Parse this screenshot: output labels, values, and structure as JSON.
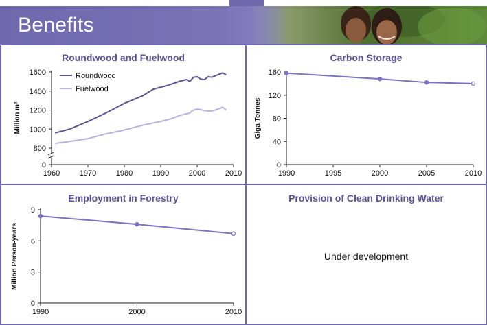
{
  "header": {
    "title": "Benefits"
  },
  "photo": {
    "icon": "children-photo"
  },
  "colors": {
    "accent": "#6f68ad",
    "roundwood": "#5b548f",
    "fuelwood": "#b7b2da",
    "line": "#7b72c0"
  },
  "chart_data": [
    {
      "type": "line",
      "title": "Roundwood and Fuelwood",
      "ylabel": "Million m³",
      "xlabel": "",
      "ylim": [
        0,
        1600
      ],
      "axis_break": true,
      "yticks": [
        0,
        800,
        1000,
        1200,
        1400,
        1600
      ],
      "xticks": [
        1960,
        1970,
        1980,
        1990,
        2000,
        2010
      ],
      "legend": "top-left",
      "series": [
        {
          "name": "Roundwood",
          "x": [
            1961,
            1965,
            1970,
            1975,
            1980,
            1985,
            1988,
            1990,
            1992,
            1995,
            1997,
            1998,
            1999,
            2000,
            2001,
            2002,
            2003,
            2004,
            2005,
            2006,
            2007,
            2008
          ],
          "y": [
            960,
            1000,
            1080,
            1170,
            1270,
            1350,
            1420,
            1440,
            1460,
            1500,
            1520,
            1500,
            1545,
            1550,
            1525,
            1520,
            1550,
            1545,
            1560,
            1575,
            1590,
            1570
          ]
        },
        {
          "name": "Fuelwood",
          "x": [
            1961,
            1965,
            1970,
            1975,
            1980,
            1985,
            1990,
            1993,
            1995,
            1997,
            1998,
            1999,
            2000,
            2001,
            2002,
            2003,
            2004,
            2005,
            2006,
            2007,
            2008
          ],
          "y": [
            850,
            870,
            900,
            950,
            990,
            1040,
            1080,
            1110,
            1140,
            1160,
            1170,
            1200,
            1210,
            1205,
            1195,
            1190,
            1190,
            1200,
            1215,
            1230,
            1200
          ]
        }
      ]
    },
    {
      "type": "line",
      "title": "Carbon Storage",
      "ylabel": "Giga Tonnes",
      "xlabel": "",
      "ylim": [
        0,
        160
      ],
      "yticks": [
        0,
        40,
        80,
        120,
        160
      ],
      "xticks": [
        1990,
        1995,
        2000,
        2005,
        2010
      ],
      "series": [
        {
          "x": [
            1990,
            2000,
            2005,
            2010
          ],
          "y": [
            158,
            148,
            142,
            140
          ]
        }
      ]
    },
    {
      "type": "line",
      "title": "Employment in Forestry",
      "ylabel": "Million Person-years",
      "xlabel": "",
      "ylim": [
        0,
        9
      ],
      "yticks": [
        0,
        3,
        6,
        9
      ],
      "xticks": [
        1990,
        2000,
        2010
      ],
      "series": [
        {
          "x": [
            1990,
            2000,
            2010
          ],
          "y": [
            8.4,
            7.6,
            6.7
          ]
        }
      ]
    }
  ],
  "water_panel": {
    "title": "Provision of Clean Drinking Water",
    "status": "Under development"
  }
}
